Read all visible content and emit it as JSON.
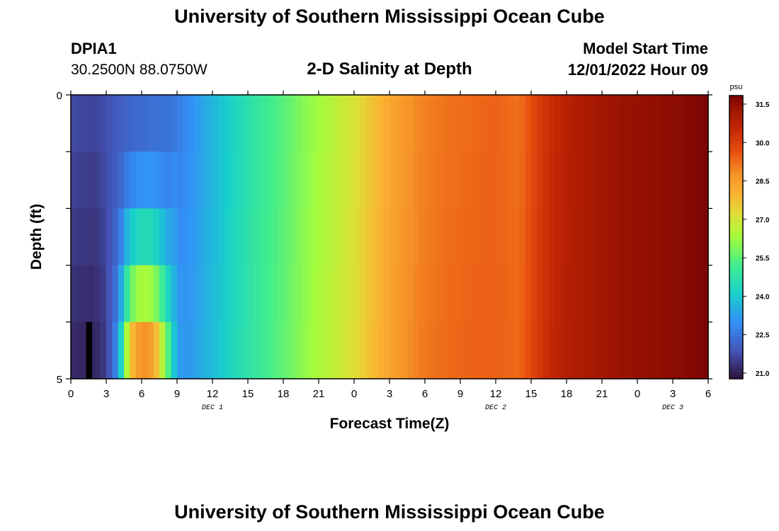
{
  "header": {
    "title": "University of Southern Mississippi Ocean Cube",
    "station_id": "DPIA1",
    "coordinates": "30.2500N  88.0750W",
    "subtitle": "2-D Salinity at Depth",
    "model_start_label": "Model Start Time",
    "model_start_value": "12/01/2022 Hour 09"
  },
  "footer": {
    "title": "University of Southern Mississippi Ocean Cube"
  },
  "chart_data": {
    "type": "heatmap",
    "title": "2-D Salinity at Depth",
    "xlabel": "Forecast Time(Z)",
    "ylabel": "Depth (ft)",
    "x_ticks": [
      "0",
      "3",
      "6",
      "9",
      "12",
      "15",
      "18",
      "21",
      "0",
      "3",
      "6",
      "9",
      "12",
      "15",
      "18",
      "21",
      "0",
      "3",
      "6"
    ],
    "x_range_hours": [
      0,
      54
    ],
    "date_labels": [
      {
        "label": "DEC 1",
        "hour": 12
      },
      {
        "label": "DEC 2",
        "hour": 36
      },
      {
        "label": "DEC 3",
        "hour": 51
      }
    ],
    "y_ticks": [
      "0",
      "5"
    ],
    "ylim": [
      0,
      5
    ],
    "colorbar": {
      "unit": "psu",
      "ticks": [
        "31.5",
        "30.0",
        "28.5",
        "27.0",
        "25.5",
        "24.0",
        "22.5",
        "21.0"
      ],
      "range": [
        20.8,
        31.7
      ]
    },
    "time_step_hours": 0.5,
    "depth_levels": 5,
    "salinity_profile": {
      "note_hours": [
        0,
        2,
        3,
        4,
        5,
        6,
        7,
        8,
        9,
        10,
        12,
        14,
        16,
        18,
        20,
        22,
        24,
        26,
        28,
        30,
        32,
        34,
        36,
        38,
        40,
        42,
        44,
        46,
        48,
        50,
        52,
        54
      ],
      "surface": [
        21.7,
        21.6,
        21.8,
        22.0,
        22.2,
        22.3,
        22.4,
        22.4,
        22.6,
        22.9,
        23.6,
        24.3,
        24.9,
        25.4,
        26.0,
        26.5,
        27.0,
        27.8,
        28.5,
        28.9,
        29.1,
        29.2,
        29.3,
        29.1,
        30.1,
        30.7,
        31.0,
        31.2,
        31.3,
        31.4,
        31.5,
        31.7
      ],
      "bottom": [
        21.2,
        21.1,
        21.5,
        23.0,
        27.5,
        28.8,
        28.3,
        26.0,
        23.2,
        23.1,
        23.7,
        24.4,
        25.0,
        25.5,
        26.1,
        26.6,
        27.1,
        27.9,
        28.6,
        29.0,
        29.2,
        29.3,
        29.3,
        29.2,
        30.2,
        30.8,
        31.0,
        31.2,
        31.3,
        31.4,
        31.5,
        31.7
      ]
    },
    "missing_marker": {
      "hour_start": 1.3,
      "hour_end": 1.8,
      "depth_level": 5
    }
  }
}
